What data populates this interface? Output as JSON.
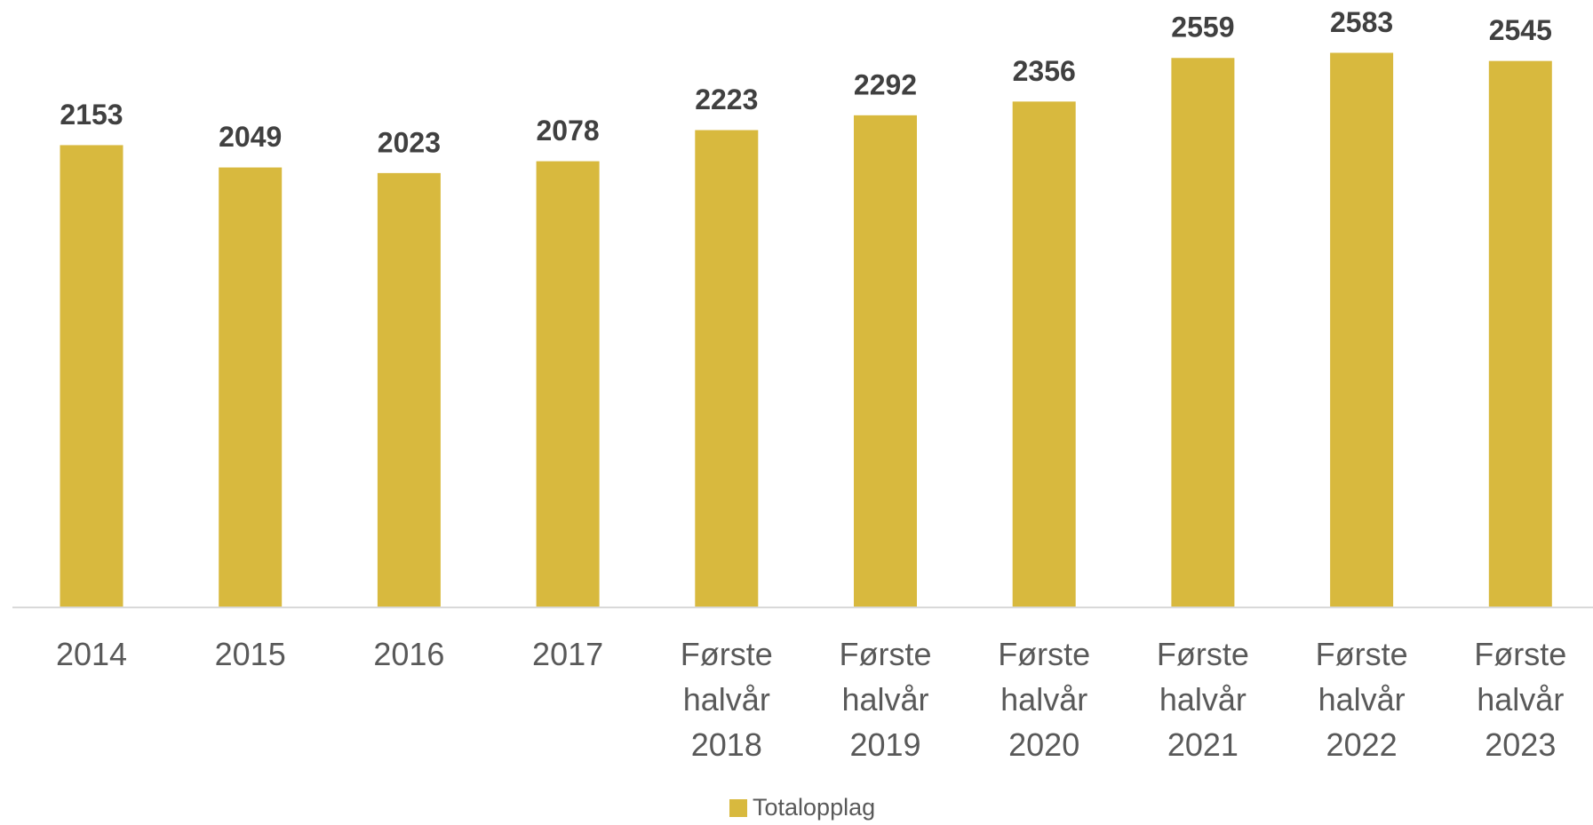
{
  "chart_data": {
    "type": "bar",
    "categories": [
      "2014",
      "2015",
      "2016",
      "2017",
      "Første halvår 2018",
      "Første halvår 2019",
      "Første halvår 2020",
      "Første halvår 2021",
      "Første halvår 2022",
      "Første halvår 2023"
    ],
    "series": [
      {
        "name": "Totalopplag",
        "color": "#d8b93e",
        "values": [
          2153,
          2049,
          2023,
          2078,
          2223,
          2292,
          2356,
          2559,
          2583,
          2545
        ]
      }
    ],
    "ylim": [
      0,
      2800
    ],
    "legend": "bottom"
  }
}
